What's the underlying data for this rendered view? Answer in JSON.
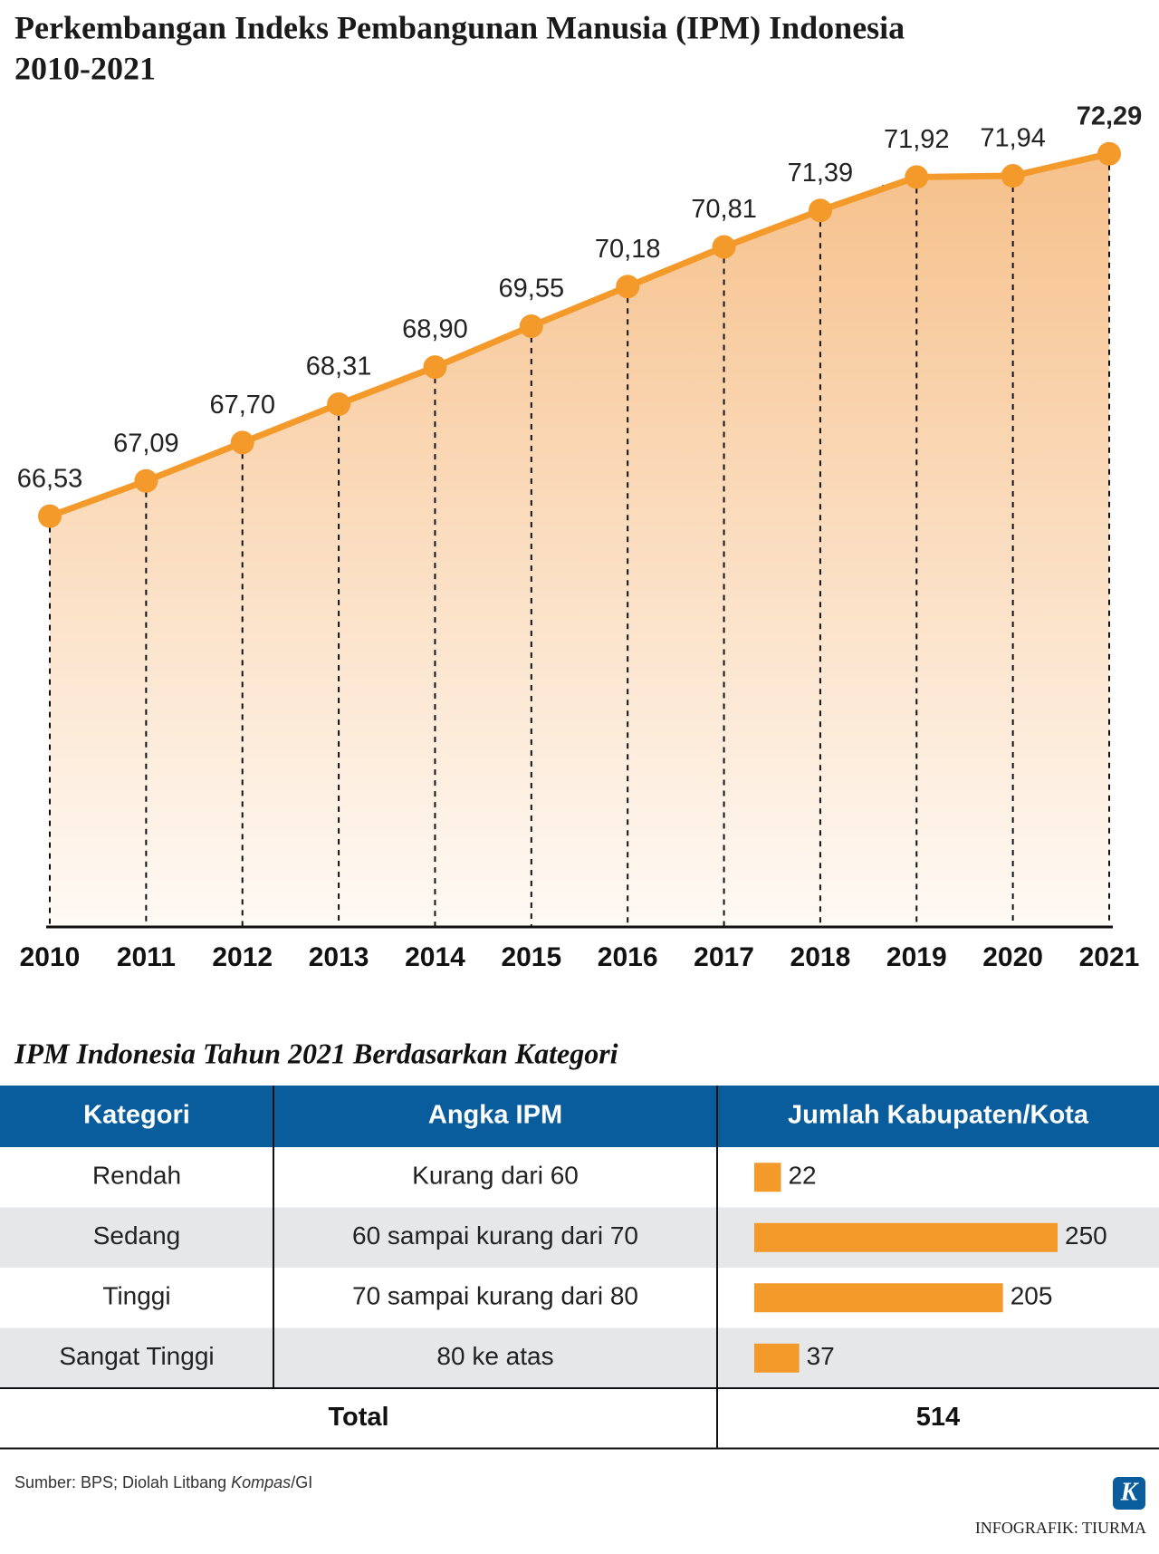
{
  "header": {
    "title_line1": "Perkembangan Indeks Pembangunan Manusia (IPM) Indonesia",
    "title_line2": "2010-2021"
  },
  "chart_data": {
    "type": "line",
    "categories": [
      "2010",
      "2011",
      "2012",
      "2013",
      "2014",
      "2015",
      "2016",
      "2017",
      "2018",
      "2019",
      "2020",
      "2021"
    ],
    "values": [
      66.53,
      67.09,
      67.7,
      68.31,
      68.9,
      69.55,
      70.18,
      70.81,
      71.39,
      71.92,
      71.94,
      72.29
    ],
    "value_labels": [
      "66,53",
      "67,09",
      "67,70",
      "68,31",
      "68,90",
      "69,55",
      "70,18",
      "70,81",
      "71,39",
      "71,92",
      "71,94",
      "72,29"
    ],
    "color": "#f39a2a",
    "ylim": [
      60,
      74
    ]
  },
  "table": {
    "title": "IPM Indonesia Tahun 2021 Berdasarkan Kategori",
    "header": [
      "Kategori",
      "Angka IPM",
      "Jumlah Kabupaten/Kota"
    ],
    "rows": [
      [
        "Rendah",
        "Kurang dari 60",
        22
      ],
      [
        "Sedang",
        "60 sampai kurang dari 70",
        250
      ],
      [
        "Tinggi",
        "70 sampai kurang dari 80",
        205
      ],
      [
        "Sangat Tinggi",
        "80 ke atas",
        37
      ]
    ],
    "total": {
      "label": "Total",
      "value": 514
    }
  },
  "footer": {
    "source_prefix": "Sumber: BPS; Diolah Litbang ",
    "source_italic": "Kompas",
    "source_suffix": "/GI",
    "logo": "K",
    "credit": "INFOGRAFIK: TIURMA"
  }
}
